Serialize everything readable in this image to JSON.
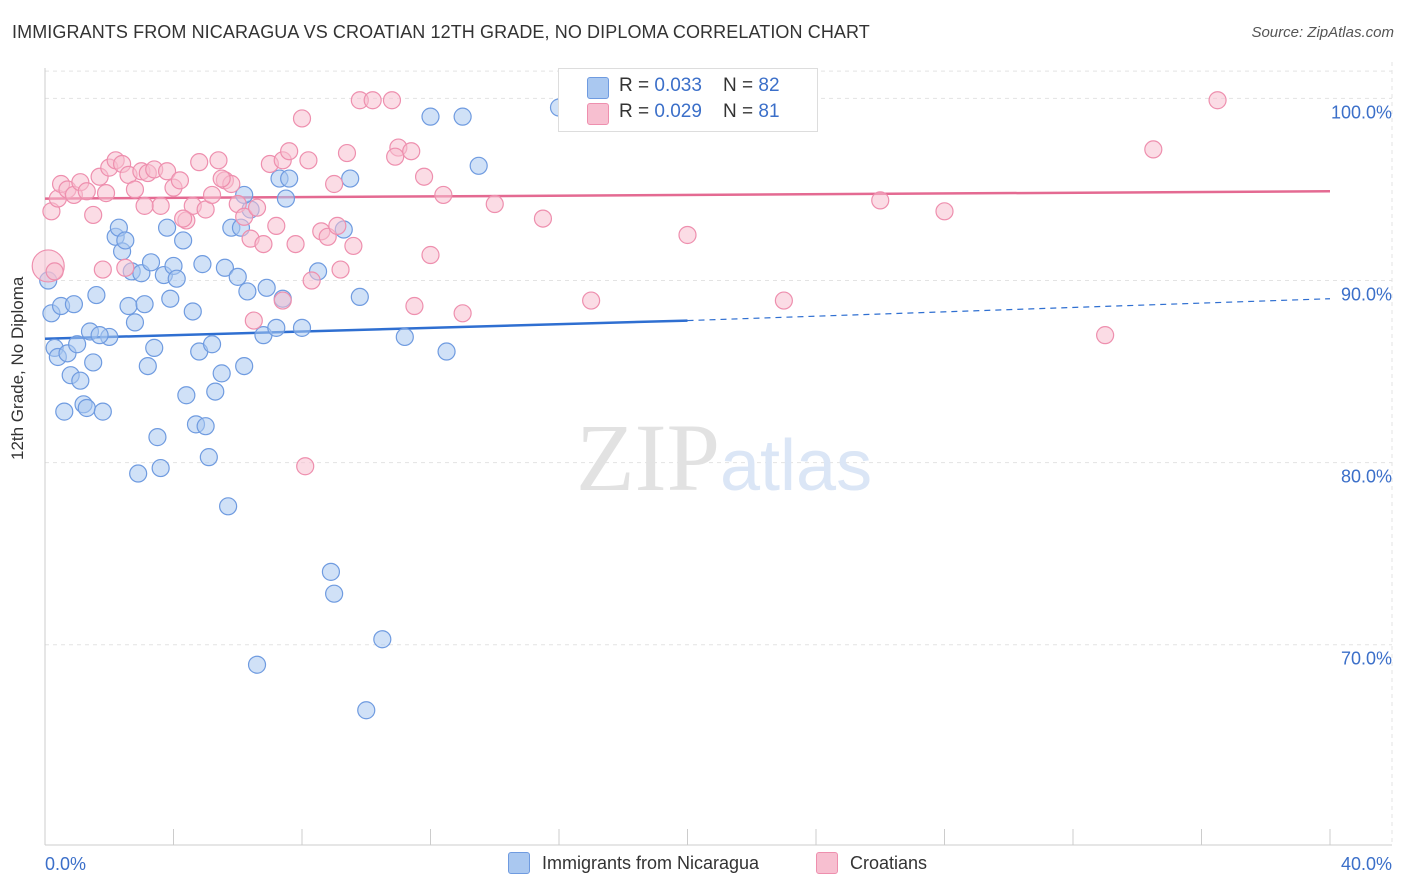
{
  "title": "IMMIGRANTS FROM NICARAGUA VS CROATIAN 12TH GRADE, NO DIPLOMA CORRELATION CHART",
  "source": "Source: ZipAtlas.com",
  "watermark": {
    "zip": "ZIP",
    "atlas": "atlas"
  },
  "legend": {
    "series1": {
      "r_label": "R = ",
      "r_value": "0.033",
      "n_label": "N = ",
      "n_value": "82"
    },
    "series2": {
      "r_label": "R = ",
      "r_value": "0.029",
      "n_label": "N = ",
      "n_value": "81"
    }
  },
  "colors": {
    "blue_fill": "#aac8f0",
    "blue_stroke": "#6f9be0",
    "blue_line": "#2f6fd1",
    "pink_fill": "#f7bfd0",
    "pink_stroke": "#ee8fae",
    "pink_line": "#e46a92",
    "tick_label": "#3b6fc9",
    "grid": "#e3e3e3"
  },
  "chart_data": {
    "type": "scatter",
    "title": "IMMIGRANTS FROM NICARAGUA VS CROATIAN 12TH GRADE, NO DIPLOMA CORRELATION CHART",
    "xlabel": "",
    "ylabel": "12th Grade, No Diploma",
    "xlim": [
      0,
      40
    ],
    "ylim": [
      59,
      102
    ],
    "x_tick_labels": [
      "0.0%",
      "40.0%"
    ],
    "y_ticks": [
      70,
      80,
      90,
      100
    ],
    "y_tick_labels": [
      "70.0%",
      "80.0%",
      "90.0%",
      "100.0%"
    ],
    "grid": true,
    "legend_position": "bottom",
    "series": [
      {
        "name": "Immigrants from Nicaragua",
        "color": "#aac8f0",
        "trend": {
          "x0": 0,
          "y0": 86.8,
          "x1": 20,
          "y1": 87.8,
          "dashed_to_x": 40,
          "dashed_to_y": 89.0
        },
        "points": [
          [
            0.1,
            90.0
          ],
          [
            0.2,
            88.2
          ],
          [
            0.3,
            86.3
          ],
          [
            0.4,
            85.8
          ],
          [
            0.5,
            88.6
          ],
          [
            0.6,
            82.8
          ],
          [
            0.7,
            86.0
          ],
          [
            0.8,
            84.8
          ],
          [
            0.9,
            88.7
          ],
          [
            1.0,
            86.5
          ],
          [
            1.1,
            84.5
          ],
          [
            1.2,
            83.2
          ],
          [
            1.3,
            83.0
          ],
          [
            1.4,
            87.2
          ],
          [
            1.5,
            85.5
          ],
          [
            1.6,
            89.2
          ],
          [
            1.8,
            82.8
          ],
          [
            2.0,
            86.9
          ],
          [
            2.2,
            92.4
          ],
          [
            2.3,
            92.9
          ],
          [
            2.4,
            91.6
          ],
          [
            2.5,
            92.2
          ],
          [
            2.6,
            88.6
          ],
          [
            2.7,
            90.5
          ],
          [
            2.8,
            87.7
          ],
          [
            2.9,
            79.4
          ],
          [
            3.0,
            90.4
          ],
          [
            3.1,
            88.7
          ],
          [
            3.2,
            85.3
          ],
          [
            3.4,
            86.3
          ],
          [
            3.5,
            81.4
          ],
          [
            3.6,
            79.7
          ],
          [
            3.7,
            90.3
          ],
          [
            3.8,
            92.9
          ],
          [
            3.9,
            89.0
          ],
          [
            4.0,
            90.8
          ],
          [
            4.1,
            90.1
          ],
          [
            4.3,
            92.2
          ],
          [
            4.4,
            83.7
          ],
          [
            4.6,
            88.3
          ],
          [
            4.7,
            82.1
          ],
          [
            4.8,
            86.1
          ],
          [
            4.9,
            90.9
          ],
          [
            5.0,
            82.0
          ],
          [
            5.1,
            80.3
          ],
          [
            5.2,
            86.5
          ],
          [
            5.3,
            83.9
          ],
          [
            5.5,
            84.9
          ],
          [
            5.6,
            90.7
          ],
          [
            5.7,
            77.6
          ],
          [
            5.8,
            92.9
          ],
          [
            6.0,
            90.2
          ],
          [
            6.1,
            92.9
          ],
          [
            6.2,
            85.3
          ],
          [
            6.3,
            89.4
          ],
          [
            6.4,
            93.9
          ],
          [
            6.8,
            87.0
          ],
          [
            6.9,
            89.6
          ],
          [
            7.2,
            87.4
          ],
          [
            7.3,
            95.6
          ],
          [
            7.4,
            89.0
          ],
          [
            7.5,
            94.5
          ],
          [
            7.6,
            95.6
          ],
          [
            8.0,
            87.4
          ],
          [
            8.5,
            90.5
          ],
          [
            8.9,
            74.0
          ],
          [
            9.0,
            72.8
          ],
          [
            9.3,
            92.8
          ],
          [
            9.5,
            95.6
          ],
          [
            9.8,
            89.1
          ],
          [
            10.0,
            66.4
          ],
          [
            10.5,
            70.3
          ],
          [
            11.2,
            86.9
          ],
          [
            12.0,
            99.0
          ],
          [
            12.5,
            86.1
          ],
          [
            13.0,
            99.0
          ],
          [
            13.5,
            96.3
          ],
          [
            16.0,
            99.5
          ],
          [
            6.6,
            68.9
          ],
          [
            6.2,
            94.7
          ],
          [
            3.3,
            91.0
          ],
          [
            1.7,
            87.0
          ]
        ]
      },
      {
        "name": "Croatians",
        "color": "#f7bfd0",
        "trend": {
          "x0": 0,
          "y0": 94.5,
          "x1": 40,
          "y1": 94.9
        },
        "points": [
          [
            0.1,
            90.8
          ],
          [
            0.2,
            93.8
          ],
          [
            0.4,
            94.5
          ],
          [
            0.5,
            95.3
          ],
          [
            0.7,
            95.0
          ],
          [
            0.9,
            94.7
          ],
          [
            1.1,
            95.4
          ],
          [
            1.3,
            94.9
          ],
          [
            1.5,
            93.6
          ],
          [
            1.7,
            95.7
          ],
          [
            1.9,
            94.8
          ],
          [
            2.0,
            96.2
          ],
          [
            2.2,
            96.6
          ],
          [
            2.4,
            96.4
          ],
          [
            2.6,
            95.8
          ],
          [
            2.8,
            95.0
          ],
          [
            3.0,
            96.0
          ],
          [
            3.2,
            95.9
          ],
          [
            3.4,
            96.1
          ],
          [
            3.6,
            94.1
          ],
          [
            3.8,
            96.0
          ],
          [
            4.0,
            95.1
          ],
          [
            4.2,
            95.5
          ],
          [
            4.4,
            93.3
          ],
          [
            4.6,
            94.1
          ],
          [
            4.8,
            96.5
          ],
          [
            5.0,
            93.9
          ],
          [
            5.2,
            94.7
          ],
          [
            5.4,
            96.6
          ],
          [
            5.6,
            95.5
          ],
          [
            5.8,
            95.3
          ],
          [
            6.0,
            94.2
          ],
          [
            6.2,
            93.5
          ],
          [
            6.4,
            92.3
          ],
          [
            6.6,
            94.0
          ],
          [
            6.8,
            92.0
          ],
          [
            7.0,
            96.4
          ],
          [
            7.2,
            93.0
          ],
          [
            7.4,
            96.6
          ],
          [
            7.6,
            97.1
          ],
          [
            7.8,
            92.0
          ],
          [
            8.0,
            98.9
          ],
          [
            8.2,
            96.6
          ],
          [
            8.6,
            92.7
          ],
          [
            8.8,
            92.4
          ],
          [
            9.0,
            95.3
          ],
          [
            9.2,
            90.6
          ],
          [
            9.4,
            97.0
          ],
          [
            9.6,
            91.9
          ],
          [
            9.8,
            99.9
          ],
          [
            10.2,
            99.9
          ],
          [
            10.8,
            99.9
          ],
          [
            11.0,
            97.3
          ],
          [
            11.4,
            97.1
          ],
          [
            11.8,
            95.7
          ],
          [
            12.0,
            91.4
          ],
          [
            12.4,
            94.7
          ],
          [
            13.0,
            88.2
          ],
          [
            14.0,
            94.2
          ],
          [
            15.5,
            93.4
          ],
          [
            17.0,
            88.9
          ],
          [
            20.0,
            92.5
          ],
          [
            23.0,
            88.9
          ],
          [
            26.0,
            94.4
          ],
          [
            28.0,
            93.8
          ],
          [
            33.0,
            87.0
          ],
          [
            34.5,
            97.2
          ],
          [
            36.5,
            99.9
          ],
          [
            1.8,
            90.6
          ],
          [
            6.5,
            87.8
          ],
          [
            7.4,
            88.9
          ],
          [
            8.3,
            90.0
          ],
          [
            8.1,
            79.8
          ],
          [
            11.5,
            88.6
          ],
          [
            2.5,
            90.7
          ],
          [
            4.3,
            93.4
          ],
          [
            5.5,
            95.6
          ],
          [
            3.1,
            94.1
          ],
          [
            0.3,
            90.5
          ],
          [
            10.9,
            96.8
          ],
          [
            9.1,
            93.0
          ]
        ]
      }
    ],
    "bottom_legend": [
      "Immigrants from Nicaragua",
      "Croatians"
    ]
  }
}
